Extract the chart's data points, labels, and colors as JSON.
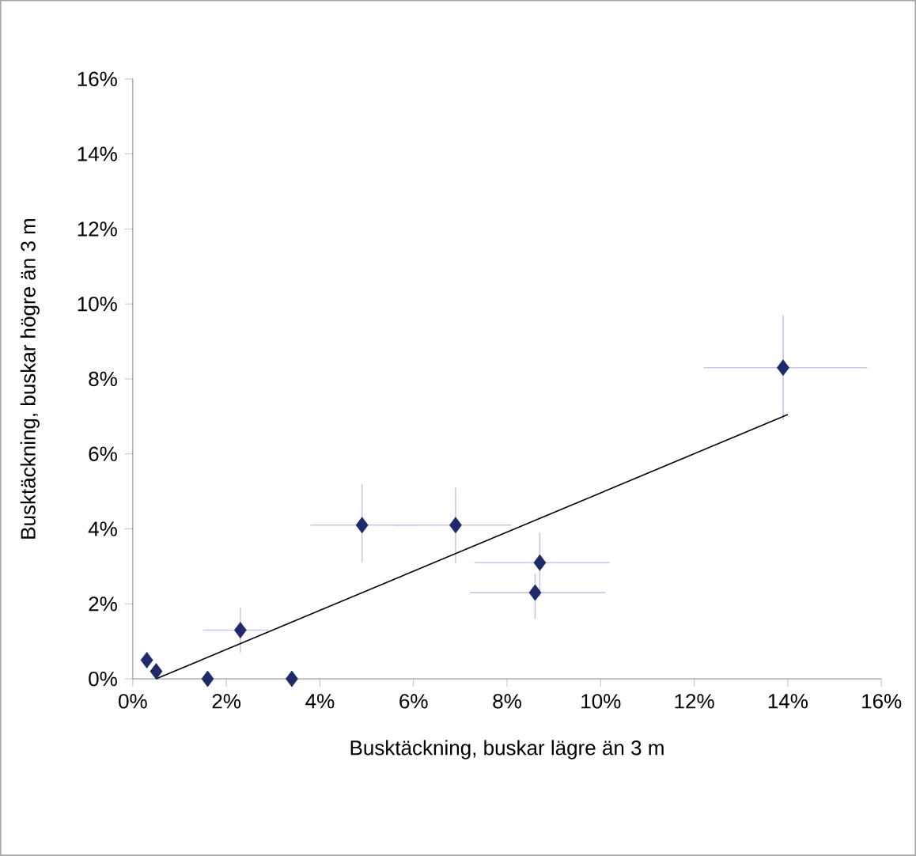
{
  "chart_data": {
    "type": "scatter",
    "xlabel": "Busktäckning, buskar lägre än 3 m",
    "ylabel": "Busktäckning, buskar högre än 3 m",
    "xlim": [
      0,
      16
    ],
    "ylim": [
      0,
      16
    ],
    "xticks": [
      {
        "value": 0,
        "label": "0%"
      },
      {
        "value": 2,
        "label": "2%"
      },
      {
        "value": 4,
        "label": "4%"
      },
      {
        "value": 6,
        "label": "6%"
      },
      {
        "value": 8,
        "label": "8%"
      },
      {
        "value": 10,
        "label": "10%"
      },
      {
        "value": 12,
        "label": "12%"
      },
      {
        "value": 14,
        "label": "14%"
      },
      {
        "value": 16,
        "label": "16%"
      }
    ],
    "yticks": [
      {
        "value": 0,
        "label": "0%"
      },
      {
        "value": 2,
        "label": "2%"
      },
      {
        "value": 4,
        "label": "4%"
      },
      {
        "value": 6,
        "label": "6%"
      },
      {
        "value": 8,
        "label": "8%"
      },
      {
        "value": 10,
        "label": "10%"
      },
      {
        "value": 12,
        "label": "12%"
      },
      {
        "value": 14,
        "label": "14%"
      },
      {
        "value": 16,
        "label": "16%"
      }
    ],
    "grid": false,
    "series": [
      {
        "color": "#1f2a6b",
        "marker": "diamond",
        "x": [
          0.3,
          0.5,
          1.6,
          2.3,
          3.4,
          4.9,
          6.9,
          8.7,
          8.6,
          13.9
        ],
        "values": [
          0.5,
          0.2,
          0,
          1.3,
          0,
          4.1,
          4.1,
          3.1,
          2.3,
          8.3
        ],
        "errors": [
          null,
          null,
          null,
          [
            0.7,
            1.9
          ],
          null,
          [
            3.1,
            5.2
          ],
          [
            3.1,
            5.1
          ],
          [
            2.2,
            3.9
          ],
          [
            1.6,
            2.8
          ],
          [
            6.9,
            9.7
          ]
        ],
        "xerrors": [
          null,
          null,
          null,
          [
            1.5,
            2.9
          ],
          null,
          [
            3.8,
            6.1
          ],
          [
            5.6,
            8.1
          ],
          [
            7.3,
            10.2
          ],
          [
            7.2,
            10.1
          ],
          [
            12.2,
            15.7
          ]
        ]
      },
      {
        "type": "line",
        "color": "#000000",
        "marker": "none",
        "line_style": "solid",
        "x": [
          0.5,
          14
        ],
        "values": [
          0,
          7.05
        ]
      }
    ]
  }
}
